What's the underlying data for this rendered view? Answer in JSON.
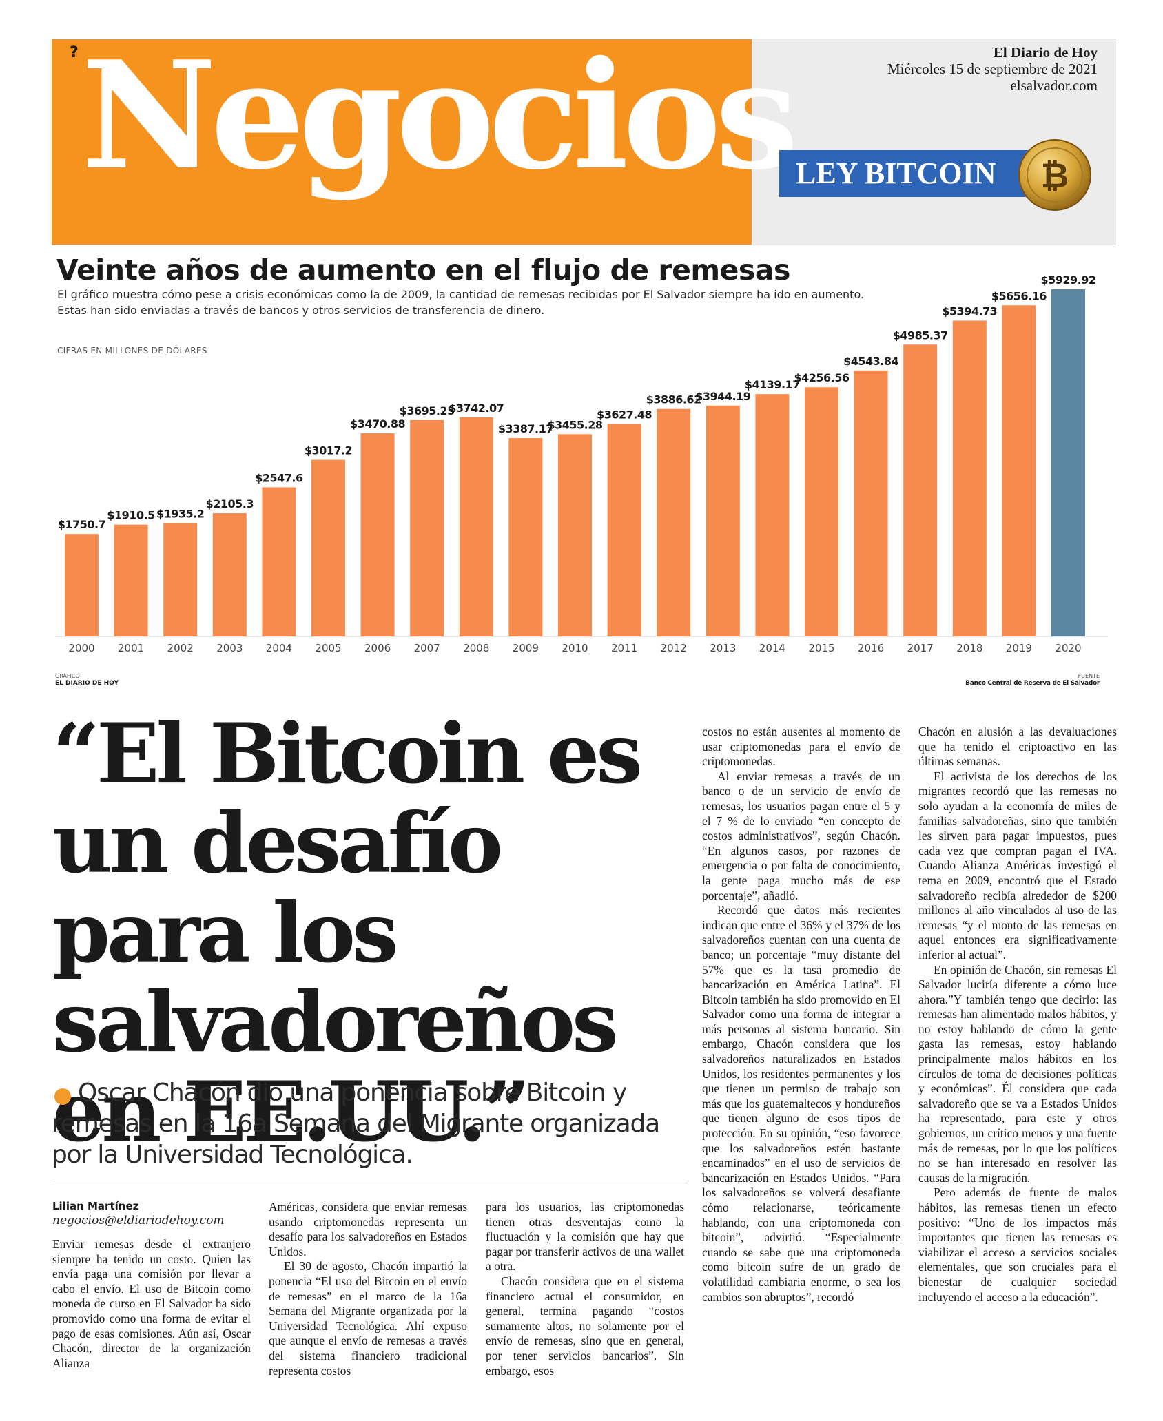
{
  "header": {
    "section_mark": "?",
    "section_title": "Negocios",
    "publication": "El Diario de Hoy",
    "date": "Miércoles 15 de septiembre de 2021",
    "website": "elsalvador.com",
    "topic_label": "LEY BITCOIN",
    "coin_symbol": "₿"
  },
  "chart_block": {
    "title": "Veinte años de aumento en el flujo de remesas",
    "description_line1": "El gráfico muestra cómo pese a crisis económicas como la de 2009, la cantidad de remesas recibidas por El Salvador siempre ha ido en aumento.",
    "description_line2": "Estas han sido enviadas a través de bancos y otros servicios de transferencia de dinero.",
    "units": "CIFRAS EN MILLONES DE DÓLARES",
    "credit_label": "GRÁFICO",
    "credit_name": "EL DIARIO DE HOY",
    "source_label": "FUENTE",
    "source_name": "Banco Central de Reserva de El Salvador"
  },
  "chart_data": {
    "type": "bar",
    "categories": [
      "2000",
      "2001",
      "2002",
      "2003",
      "2004",
      "2005",
      "2006",
      "2007",
      "2008",
      "2009",
      "2010",
      "2011",
      "2012",
      "2013",
      "2014",
      "2015",
      "2016",
      "2017",
      "2018",
      "2019",
      "2020"
    ],
    "values": [
      1750.7,
      1910.5,
      1935.2,
      2105.3,
      2547.6,
      3017.2,
      3470.88,
      3695.25,
      3742.07,
      3387.17,
      3455.28,
      3627.48,
      3886.62,
      3944.19,
      4139.17,
      4256.56,
      4543.84,
      4985.37,
      5394.73,
      5656.16,
      5929.92
    ],
    "labels": [
      "$1750.7",
      "$1910.5",
      "$1935.2",
      "$2105.3",
      "$2547.6",
      "$3017.2",
      "$3470.88",
      "$3695.25",
      "$3742.07",
      "$3387.17",
      "$3455.28",
      "$3627.48",
      "$3886.62",
      "$3944.19",
      "$4139.17",
      "$4256.56",
      "$4543.84",
      "$4985.37",
      "$5394.73",
      "$5656.16",
      "$5929.92"
    ],
    "title": "Veinte años de aumento en el flujo de remesas",
    "ylabel": "CIFRAS EN MILLONES DE DÓLARES",
    "ylim": [
      0,
      5929.92
    ],
    "grid": false,
    "colors": {
      "default": "#f68b4d",
      "highlight": "#5b87a3",
      "highlight_category": "2020"
    }
  },
  "article": {
    "headline": "“El Bitcoin es un desafío para los salvadoreños en EE.UU.”",
    "subhead": "Oscar Chacón dio una ponencia sobre Bitcoin y remesas en la 16a Semana del Migrante organizada por la Universidad Tecnológica.",
    "author": "Lilian Martínez",
    "author_email": "negocios@eldiariodehoy.com",
    "col1": [
      "Enviar remesas desde el extranjero siempre ha tenido un costo. Quien las envía paga una comisión por llevar a cabo el envío. El uso de Bitcoin como moneda de curso en El Salvador ha sido promovido como una forma de evitar el pago de esas comisiones. Aún así, Oscar Chacón, director de la organización Alianza"
    ],
    "col2": [
      "Américas, considera que enviar remesas usando criptomonedas representa un desafío para los salvadoreños en Estados Unidos.",
      "El 30 de agosto, Chacón impartió la ponencia “El uso del Bitcoin en el envío de remesas” en el marco de la 16a Semana del Migrante organizada por la Universidad Tecnológica. Ahí expuso que aunque el envío de remesas a través del sistema financiero tradicional representa costos"
    ],
    "col3": [
      "para los usuarios, las criptomonedas tienen otras desventajas como la fluctuación y la comisión que hay que pagar por transferir activos de una wallet a otra.",
      "Chacón considera que en el sistema financiero actual el consumidor, en general, termina pagando “costos sumamente altos, no solamente por el envío de remesas, sino que en general, por tener servicios bancarios”. Sin embargo, esos"
    ],
    "col4": [
      "costos no están ausentes al momento de usar criptomonedas para el envío de criptomonedas.",
      "Al enviar remesas a través de un banco o de un servicio de envío de remesas, los usuarios pagan entre el 5 y el 7 % de lo enviado “en concepto de costos administrativos”, según Chacón. “En algunos casos, por razones de emergencia o por falta de conocimiento, la gente paga mucho más de ese porcentaje”, añadió.",
      "Recordó que datos más recientes indican que entre el 36% y el 37% de los salvadoreños cuentan con una cuenta de banco; un porcentaje “muy distante del 57% que es la tasa promedio de bancarización en América Latina”. El Bitcoin también ha sido promovido en El Salvador como una forma de integrar a más personas al sistema bancario. Sin embargo, Chacón considera que los salvadoreños naturalizados en Estados Unidos, los residentes permanentes y los que tienen un permiso de trabajo son más que los guatemaltecos y hondureños que tienen alguno de esos tipos de protección. En su opinión, “eso favorece que los salvadoreños estén bastante encaminados” en el uso de servicios de bancarización en Estados Unidos. “Para los salvadoreños se volverá desafiante cómo relacionarse, teóricamente hablando, con una criptomoneda con bitcoin”, advirtió. “Especialmente cuando se sabe que una criptomoneda como bitcoin sufre de un grado de volatilidad cambiaria enorme, o sea los cambios son abruptos”, recordó"
    ],
    "col5": [
      "Chacón en alusión a las devaluaciones que ha tenido el criptoactivo en las últimas semanas.",
      "El activista de los derechos de los migrantes recordó que las remesas no solo ayudan a la economía de miles de familias salvadoreñas, sino que también les sirven para pagar impuestos, pues cada vez que compran pagan el IVA. Cuando Alianza Américas investigó el tema en 2009, encontró que el Estado salvadoreño recibía alrededor de $200 millones al año vinculados al uso de las remesas “y el monto de las remesas en aquel entonces era significativamente inferior al actual”.",
      "En opinión de Chacón, sin remesas El Salvador luciría diferente a cómo luce ahora.”Y también tengo que decirlo: las remesas han alimentado malos hábitos, y no estoy hablando de cómo la gente gasta las remesas, estoy hablando principalmente malos hábitos en los círculos de toma de decisiones políticas y económicas”. Él considera que cada salvadoreño que se va a Estados Unidos ha representado, para este y otros gobiernos, un crítico menos y una fuente más de remesas, por lo que los políticos no se han interesado en resolver las causas de la migración.",
      "Pero además de fuente de malos hábitos, las remesas tienen un efecto positivo: “Uno de los impactos más importantes que tienen las remesas es viabilizar el acceso a servicios sociales elementales, que son cruciales para el bienestar de cualquier sociedad incluyendo el acceso a la educación”."
    ]
  }
}
